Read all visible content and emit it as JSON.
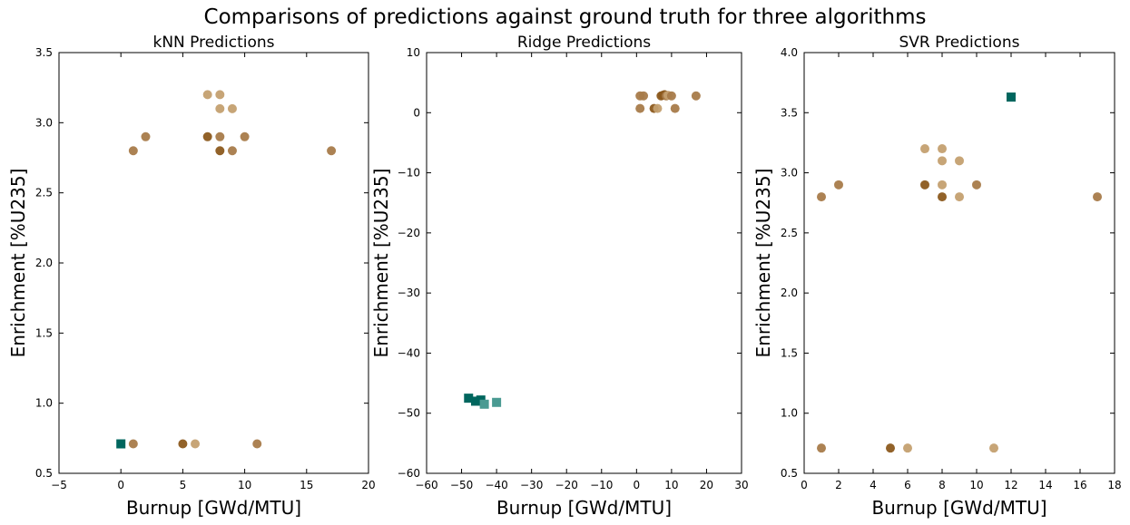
{
  "figure": {
    "title": "Comparisons of predictions against ground truth for three algorithms"
  },
  "colors": {
    "ground_truth": "#00665e",
    "ground_truth_light": "#4a9a92",
    "prediction_dark": "#8c5a1e",
    "prediction_mid": "#a87b4a",
    "prediction_light": "#c4a070"
  },
  "chart_data": [
    {
      "type": "scatter",
      "title": "kNN Predictions",
      "xlabel": "Burnup [GWd/MTU]",
      "ylabel": "Enrichment [%U235]",
      "xlim": [
        -5,
        20
      ],
      "ylim": [
        0.5,
        3.5
      ],
      "xticks": [
        -5,
        0,
        5,
        10,
        15,
        20
      ],
      "yticks": [
        0.5,
        1.0,
        1.5,
        2.0,
        2.5,
        3.0,
        3.5
      ],
      "xtick_labels": [
        "−5",
        "0",
        "5",
        "10",
        "15",
        "20"
      ],
      "ytick_labels": [
        "0.5",
        "1.0",
        "1.5",
        "2.0",
        "2.5",
        "3.0",
        "3.5"
      ],
      "series": [
        {
          "marker": "circle",
          "points": [
            {
              "x": 1,
              "y": 0.71,
              "shade": "mid"
            },
            {
              "x": 5,
              "y": 0.71,
              "shade": "dark"
            },
            {
              "x": 6,
              "y": 0.71,
              "shade": "light"
            },
            {
              "x": 11,
              "y": 0.71,
              "shade": "mid"
            },
            {
              "x": 1,
              "y": 2.8,
              "shade": "mid"
            },
            {
              "x": 2,
              "y": 2.9,
              "shade": "mid"
            },
            {
              "x": 7,
              "y": 2.9,
              "shade": "dark"
            },
            {
              "x": 7,
              "y": 3.2,
              "shade": "light"
            },
            {
              "x": 8,
              "y": 3.2,
              "shade": "light"
            },
            {
              "x": 8,
              "y": 3.1,
              "shade": "light"
            },
            {
              "x": 9,
              "y": 3.1,
              "shade": "light"
            },
            {
              "x": 8,
              "y": 2.9,
              "shade": "mid"
            },
            {
              "x": 8,
              "y": 2.8,
              "shade": "dark"
            },
            {
              "x": 9,
              "y": 2.8,
              "shade": "mid"
            },
            {
              "x": 10,
              "y": 2.9,
              "shade": "mid"
            },
            {
              "x": 17,
              "y": 2.8,
              "shade": "mid"
            }
          ]
        },
        {
          "marker": "square",
          "points": [
            {
              "x": 0,
              "y": 0.71,
              "shade": "truth"
            }
          ]
        }
      ]
    },
    {
      "type": "scatter",
      "title": "Ridge Predictions",
      "xlabel": "Burnup [GWd/MTU]",
      "ylabel": "Enrichment [%U235]",
      "xlim": [
        -60,
        30
      ],
      "ylim": [
        -60,
        10
      ],
      "xticks": [
        -60,
        -50,
        -40,
        -30,
        -20,
        -10,
        0,
        10,
        20,
        30
      ],
      "yticks": [
        -60,
        -50,
        -40,
        -30,
        -20,
        -10,
        0,
        10
      ],
      "xtick_labels": [
        "−60",
        "−50",
        "−40",
        "−30",
        "−20",
        "−10",
        "0",
        "10",
        "20",
        "30"
      ],
      "ytick_labels": [
        "−60",
        "−50",
        "−40",
        "−30",
        "−20",
        "−10",
        "0",
        "10"
      ],
      "series": [
        {
          "marker": "circle",
          "points": [
            {
              "x": 1,
              "y": 2.8,
              "shade": "mid"
            },
            {
              "x": 2,
              "y": 2.8,
              "shade": "mid"
            },
            {
              "x": 1,
              "y": 0.7,
              "shade": "mid"
            },
            {
              "x": 5,
              "y": 0.7,
              "shade": "dark"
            },
            {
              "x": 6,
              "y": 0.7,
              "shade": "light"
            },
            {
              "x": 7,
              "y": 2.8,
              "shade": "dark"
            },
            {
              "x": 7.5,
              "y": 2.9,
              "shade": "dark"
            },
            {
              "x": 8,
              "y": 3.0,
              "shade": "dark"
            },
            {
              "x": 8.5,
              "y": 2.8,
              "shade": "mid"
            },
            {
              "x": 9,
              "y": 2.9,
              "shade": "light"
            },
            {
              "x": 10,
              "y": 2.8,
              "shade": "mid"
            },
            {
              "x": 11,
              "y": 0.7,
              "shade": "mid"
            },
            {
              "x": 17,
              "y": 2.8,
              "shade": "mid"
            }
          ]
        },
        {
          "marker": "square",
          "points": [
            {
              "x": -48,
              "y": -47.5,
              "shade": "truth"
            },
            {
              "x": -46,
              "y": -48.0,
              "shade": "truth"
            },
            {
              "x": -44.5,
              "y": -47.8,
              "shade": "truth"
            },
            {
              "x": -43.5,
              "y": -48.5,
              "shade": "truth_light"
            },
            {
              "x": -40,
              "y": -48.2,
              "shade": "truth_light"
            }
          ]
        }
      ]
    },
    {
      "type": "scatter",
      "title": "SVR Predictions",
      "xlabel": "Burnup [GWd/MTU]",
      "ylabel": "Enrichment [%U235]",
      "xlim": [
        0,
        18
      ],
      "ylim": [
        0.5,
        4.0
      ],
      "xticks": [
        0,
        2,
        4,
        6,
        8,
        10,
        12,
        14,
        16,
        18
      ],
      "yticks": [
        0.5,
        1.0,
        1.5,
        2.0,
        2.5,
        3.0,
        3.5,
        4.0
      ],
      "xtick_labels": [
        "0",
        "2",
        "4",
        "6",
        "8",
        "10",
        "12",
        "14",
        "16",
        "18"
      ],
      "ytick_labels": [
        "0.5",
        "1.0",
        "1.5",
        "2.0",
        "2.5",
        "3.0",
        "3.5",
        "4.0"
      ],
      "series": [
        {
          "marker": "circle",
          "points": [
            {
              "x": 1,
              "y": 0.71,
              "shade": "mid"
            },
            {
              "x": 5,
              "y": 0.71,
              "shade": "dark"
            },
            {
              "x": 6,
              "y": 0.71,
              "shade": "light"
            },
            {
              "x": 11,
              "y": 0.71,
              "shade": "light"
            },
            {
              "x": 1,
              "y": 2.8,
              "shade": "mid"
            },
            {
              "x": 2,
              "y": 2.9,
              "shade": "mid"
            },
            {
              "x": 7,
              "y": 2.9,
              "shade": "dark"
            },
            {
              "x": 7,
              "y": 3.2,
              "shade": "light"
            },
            {
              "x": 8,
              "y": 3.2,
              "shade": "light"
            },
            {
              "x": 8,
              "y": 3.1,
              "shade": "light"
            },
            {
              "x": 9,
              "y": 3.1,
              "shade": "light"
            },
            {
              "x": 8,
              "y": 2.9,
              "shade": "light"
            },
            {
              "x": 8,
              "y": 2.8,
              "shade": "dark"
            },
            {
              "x": 9,
              "y": 2.8,
              "shade": "light"
            },
            {
              "x": 10,
              "y": 2.9,
              "shade": "mid"
            },
            {
              "x": 17,
              "y": 2.8,
              "shade": "mid"
            }
          ]
        },
        {
          "marker": "square",
          "points": [
            {
              "x": 12,
              "y": 3.63,
              "shade": "truth"
            }
          ]
        }
      ]
    }
  ]
}
